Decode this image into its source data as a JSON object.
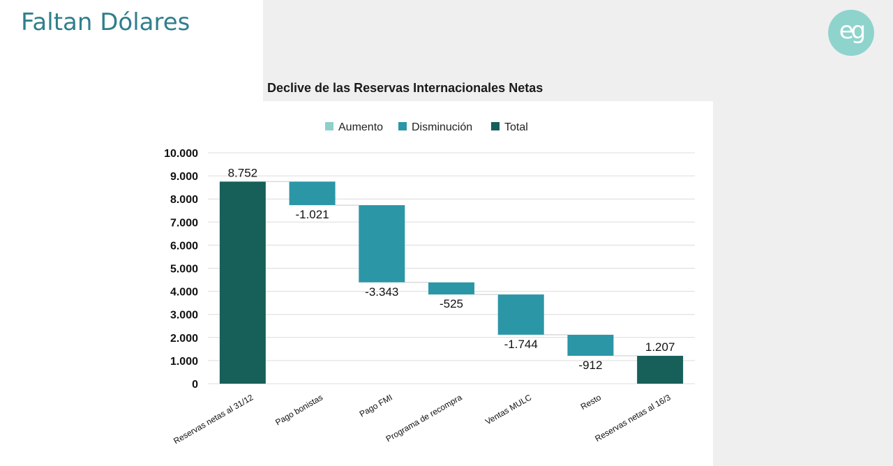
{
  "slide": {
    "title": "Faltan Dólares",
    "logo_text": "eg"
  },
  "chart_data": {
    "type": "bar",
    "subtype": "waterfall",
    "title": "Declive de las Reservas Internacionales Netas",
    "legend": {
      "placement": "top",
      "entries": [
        {
          "name": "Aumento",
          "color": "#8ecfc9"
        },
        {
          "name": "Disminución",
          "color": "#2b96a6"
        },
        {
          "name": "Total",
          "color": "#175f59"
        }
      ]
    },
    "categories": [
      "Reservas netas al 31/12",
      "Pago bonistas",
      "Pago FMI",
      "Programa de recompra",
      "Ventas MULC",
      "Resto",
      "Reservas netas al 16/3"
    ],
    "values": [
      8752,
      -1021,
      -3343,
      -525,
      -1744,
      -912,
      1207
    ],
    "kinds": [
      "total",
      "decrease",
      "decrease",
      "decrease",
      "decrease",
      "decrease",
      "total"
    ],
    "value_labels": [
      "8.752",
      "-1.021",
      "-3.343",
      "-525",
      "-1.744",
      "-912",
      "1.207"
    ],
    "ylim": [
      0,
      10000
    ],
    "yticks": [
      0,
      1000,
      2000,
      3000,
      4000,
      5000,
      6000,
      7000,
      8000,
      9000,
      10000
    ],
    "ytick_labels": [
      "0",
      "1.000",
      "2.000",
      "3.000",
      "4.000",
      "5.000",
      "6.000",
      "7.000",
      "8.000",
      "9.000",
      "10.000"
    ],
    "grid": true,
    "xlabel": "",
    "ylabel": ""
  }
}
